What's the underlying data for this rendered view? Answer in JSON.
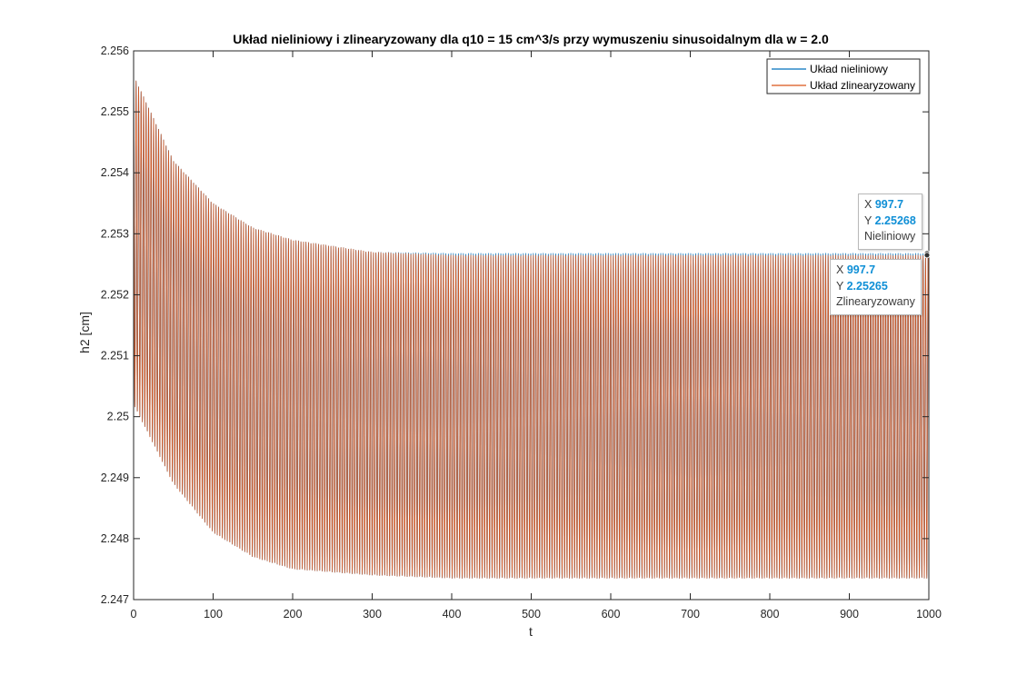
{
  "chart_data": {
    "type": "line",
    "title": "Układ nieliniowy i zlinearyzowany dla q10 = 15 cm^3/s przy wymuszeniu sinusoidalnym dla w = 2.0",
    "xlabel": "t",
    "ylabel": "h2 [cm]",
    "xlim": [
      0,
      1000
    ],
    "ylim": [
      2.247,
      2.256
    ],
    "xticks": [
      "0",
      "100",
      "200",
      "300",
      "400",
      "500",
      "600",
      "700",
      "800",
      "900",
      "1000"
    ],
    "yticks": [
      "2.247",
      "2.248",
      "2.249",
      "2.25",
      "2.251",
      "2.252",
      "2.253",
      "2.254",
      "2.255",
      "2.256"
    ],
    "grid": false,
    "legend_position": "top-right",
    "series": [
      {
        "name": "Układ nieliniowy",
        "color": "#0072bd",
        "signal": "sinusoidal oscillation, omega = 2.0",
        "upper_envelope": {
          "t": [
            0,
            50,
            100,
            150,
            200,
            300,
            400,
            1000
          ],
          "h2": [
            2.2556,
            2.2542,
            2.2535,
            2.2531,
            2.2529,
            2.2527,
            2.25268,
            2.25268
          ]
        },
        "lower_envelope": {
          "t": [
            0,
            50,
            100,
            150,
            200,
            300,
            400,
            1000
          ],
          "h2": [
            2.2502,
            2.2489,
            2.2481,
            2.2477,
            2.2475,
            2.2474,
            2.24735,
            2.24735
          ]
        }
      },
      {
        "name": "Układ zlinearyzowany",
        "color": "#d95319",
        "signal": "sinusoidal oscillation, omega = 2.0",
        "upper_envelope": {
          "t": [
            0,
            50,
            100,
            150,
            200,
            300,
            400,
            1000
          ],
          "h2": [
            2.2556,
            2.2542,
            2.2535,
            2.2531,
            2.2529,
            2.2527,
            2.25265,
            2.25265
          ]
        },
        "lower_envelope": {
          "t": [
            0,
            50,
            100,
            150,
            200,
            300,
            400,
            1000
          ],
          "h2": [
            2.2502,
            2.2489,
            2.2481,
            2.2477,
            2.2475,
            2.2474,
            2.24735,
            2.24735
          ]
        }
      }
    ],
    "datatips": [
      {
        "x": "997.7",
        "y": "2.25268",
        "series": "Nieliniowy"
      },
      {
        "x": "997.7",
        "y": "2.25265",
        "series": "Zlinearyzowany"
      }
    ]
  },
  "datatip_labels": {
    "x": "X",
    "y": "Y"
  }
}
